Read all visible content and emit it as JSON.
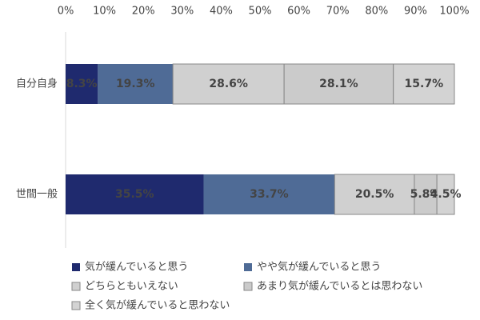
{
  "chart_data": {
    "type": "stacked-barh",
    "categories": [
      "自分自身",
      "世間一般"
    ],
    "series": [
      {
        "name": "気が緩んでいると思う",
        "color": "#1f2a6e",
        "values": [
          8.3,
          35.5
        ],
        "value_labels": [
          "8.3%",
          "35.5%"
        ]
      },
      {
        "name": "やや気が緩んでいると思う",
        "color": "#4f6b96",
        "values": [
          19.3,
          33.7
        ],
        "value_labels": [
          "19.3%",
          "33.7%"
        ]
      },
      {
        "name": "どちらともいえない",
        "color": "#d0d0d0",
        "values": [
          28.6,
          20.5
        ],
        "value_labels": [
          "28.6%",
          "20.5%"
        ]
      },
      {
        "name": "あまり気が緩んでいるとは思わない",
        "color": "#cbcbcb",
        "values": [
          28.1,
          5.8
        ],
        "value_labels": [
          "28.1%",
          "5.8%"
        ]
      },
      {
        "name": "全く気が緩んでいると思わない",
        "color": "#d3d3d3",
        "values": [
          15.7,
          4.5
        ],
        "value_labels": [
          "15.7%",
          "4.5%"
        ]
      }
    ],
    "xlim": [
      0,
      100
    ],
    "xticks": [
      {
        "value": 0,
        "label": "0%"
      },
      {
        "value": 10,
        "label": "10%"
      },
      {
        "value": 20,
        "label": "20%"
      },
      {
        "value": 30,
        "label": "30%"
      },
      {
        "value": 40,
        "label": "40%"
      },
      {
        "value": 50,
        "label": "50%"
      },
      {
        "value": 60,
        "label": "60%"
      },
      {
        "value": 70,
        "label": "70%"
      },
      {
        "value": 80,
        "label": "80%"
      },
      {
        "value": 90,
        "label": "90%"
      },
      {
        "value": 100,
        "label": "100%"
      }
    ]
  }
}
